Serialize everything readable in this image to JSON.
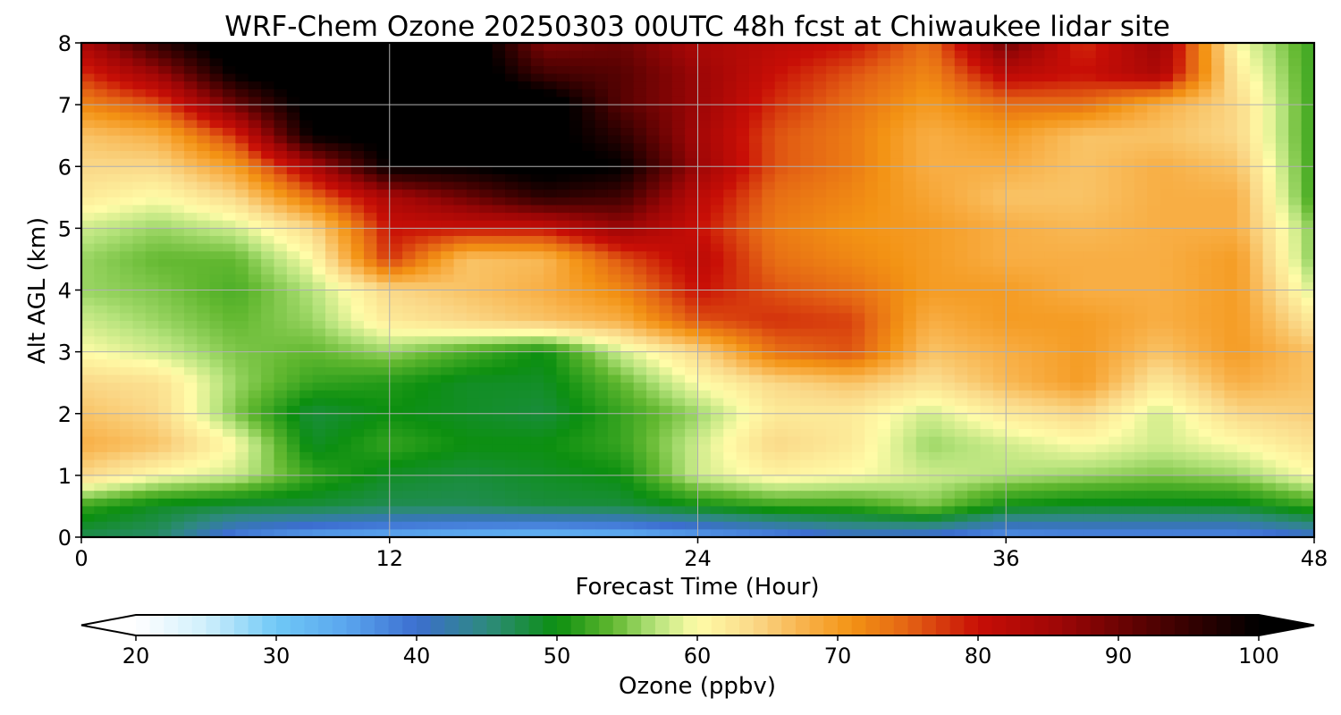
{
  "chart_data": {
    "type": "heatmap",
    "title": "WRF-Chem Ozone  20250303 00UTC 48h fcst at Chiwaukee lidar site",
    "xlabel": "Forecast Time (Hour)",
    "ylabel": "Alt AGL (km)",
    "xlim": [
      0,
      48
    ],
    "ylim": [
      0,
      8
    ],
    "x_ticks": [
      0,
      12,
      24,
      36,
      48
    ],
    "y_ticks": [
      0,
      1,
      2,
      3,
      4,
      5,
      6,
      7,
      8
    ],
    "grid": true,
    "x": [
      0,
      3,
      6,
      9,
      12,
      15,
      18,
      21,
      24,
      27,
      30,
      33,
      36,
      39,
      42,
      45,
      48
    ],
    "y": [
      0,
      0.5,
      1,
      1.5,
      2,
      2.5,
      3,
      3.5,
      4,
      4.5,
      5,
      5.5,
      6,
      6.5,
      7,
      7.5,
      8
    ],
    "z": [
      [
        47,
        46,
        38,
        35,
        34,
        33,
        32,
        33,
        35,
        37,
        40,
        39,
        36,
        37,
        37,
        37,
        40
      ],
      [
        52,
        49,
        48,
        48,
        47,
        47,
        48,
        48,
        50,
        52,
        52,
        55,
        50,
        49,
        49,
        49,
        52
      ],
      [
        64,
        60,
        58,
        52,
        49,
        48,
        49,
        50,
        58,
        61,
        60,
        58,
        57,
        56,
        55,
        56,
        60
      ],
      [
        68,
        66,
        60,
        49,
        52,
        50,
        50,
        52,
        58,
        64,
        62,
        56,
        58,
        60,
        58,
        60,
        63
      ],
      [
        66,
        64,
        55,
        48,
        50,
        49,
        48,
        52,
        56,
        62,
        62,
        58,
        62,
        64,
        58,
        64,
        65
      ],
      [
        64,
        63,
        56,
        52,
        51,
        49,
        49,
        54,
        60,
        64,
        66,
        63,
        67,
        70,
        62,
        68,
        66
      ],
      [
        60,
        58,
        55,
        54,
        56,
        53,
        50,
        58,
        64,
        74,
        76,
        66,
        68,
        70,
        66,
        70,
        66
      ],
      [
        58,
        56,
        54,
        56,
        62,
        64,
        66,
        68,
        76,
        78,
        77,
        68,
        70,
        70,
        68,
        70,
        62
      ],
      [
        56,
        55,
        53,
        57,
        64,
        66,
        68,
        72,
        80,
        76,
        74,
        70,
        70,
        68,
        68,
        70,
        58
      ],
      [
        56,
        54,
        54,
        60,
        78,
        66,
        67,
        76,
        82,
        74,
        72,
        70,
        68,
        68,
        68,
        70,
        55
      ],
      [
        58,
        56,
        58,
        64,
        80,
        80,
        80,
        86,
        80,
        73,
        71,
        70,
        68,
        67,
        68,
        68,
        55
      ],
      [
        62,
        60,
        64,
        74,
        84,
        90,
        96,
        94,
        82,
        74,
        72,
        69,
        66,
        66,
        68,
        68,
        52
      ],
      [
        64,
        64,
        70,
        84,
        100,
        100,
        102,
        100,
        86,
        76,
        73,
        68,
        68,
        66,
        68,
        66,
        52
      ],
      [
        66,
        68,
        78,
        100,
        102,
        102,
        102,
        96,
        85,
        76,
        73,
        68,
        70,
        66,
        66,
        64,
        52
      ],
      [
        72,
        76,
        90,
        102,
        104,
        104,
        104,
        92,
        86,
        78,
        74,
        70,
        74,
        74,
        68,
        64,
        52
      ],
      [
        78,
        86,
        100,
        104,
        104,
        104,
        94,
        92,
        86,
        80,
        76,
        72,
        82,
        80,
        84,
        62,
        52
      ],
      [
        84,
        96,
        104,
        104,
        104,
        104,
        88,
        90,
        84,
        82,
        80,
        74,
        90,
        78,
        86,
        60,
        52
      ]
    ],
    "colorbar": {
      "label": "Ozone  (ppbv)",
      "min": 20,
      "max": 100,
      "ticks": [
        20,
        30,
        40,
        50,
        60,
        70,
        80,
        90,
        100
      ],
      "extend": "both",
      "stops": [
        {
          "v": 20,
          "c": "#ffffff"
        },
        {
          "v": 25,
          "c": "#cfeffc"
        },
        {
          "v": 30,
          "c": "#6fc8f6"
        },
        {
          "v": 35,
          "c": "#5aa6ee"
        },
        {
          "v": 40,
          "c": "#3c6ed0"
        },
        {
          "v": 45,
          "c": "#2e8a7e"
        },
        {
          "v": 50,
          "c": "#0c8f10"
        },
        {
          "v": 54,
          "c": "#62b830"
        },
        {
          "v": 57,
          "c": "#b6e37c"
        },
        {
          "v": 60,
          "c": "#fffca8"
        },
        {
          "v": 64,
          "c": "#fad888"
        },
        {
          "v": 68,
          "c": "#f8ae44"
        },
        {
          "v": 71,
          "c": "#f39314"
        },
        {
          "v": 75,
          "c": "#e46414"
        },
        {
          "v": 80,
          "c": "#c80e06"
        },
        {
          "v": 86,
          "c": "#9c0606"
        },
        {
          "v": 92,
          "c": "#560202"
        },
        {
          "v": 100,
          "c": "#000000"
        }
      ]
    }
  }
}
